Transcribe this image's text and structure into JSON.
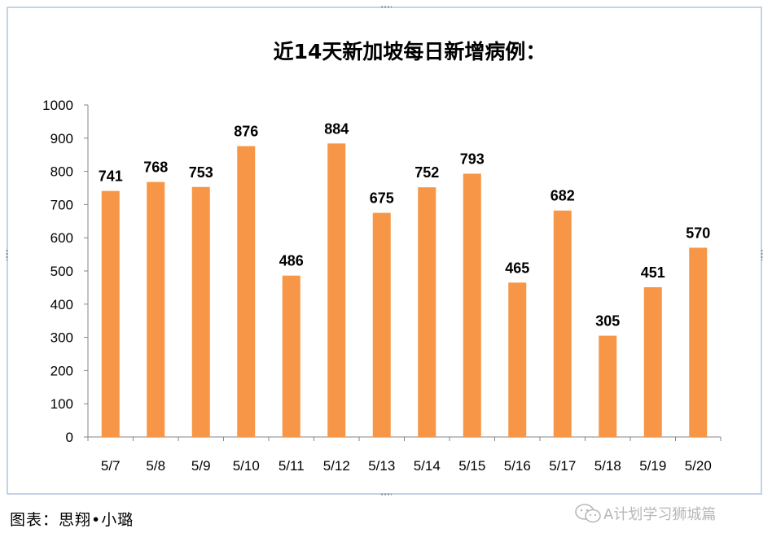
{
  "chart_data": {
    "type": "bar",
    "title": "近14天新加坡每日新增病例：",
    "categories": [
      "5/7",
      "5/8",
      "5/9",
      "5/10",
      "5/11",
      "5/12",
      "5/13",
      "5/14",
      "5/15",
      "5/16",
      "5/17",
      "5/18",
      "5/19",
      "5/20"
    ],
    "values": [
      741,
      768,
      753,
      876,
      486,
      884,
      675,
      752,
      793,
      465,
      682,
      305,
      451,
      570
    ],
    "ylim": [
      0,
      1000
    ],
    "yticks": [
      0,
      100,
      200,
      300,
      400,
      500,
      600,
      700,
      800,
      900,
      1000
    ],
    "grid": false,
    "data_labels": true,
    "bar_color": "#f79646"
  },
  "caption": "图表：思翔•小璐",
  "watermark": {
    "icon": "wechat-icon",
    "text": "A计划学习狮城篇"
  }
}
